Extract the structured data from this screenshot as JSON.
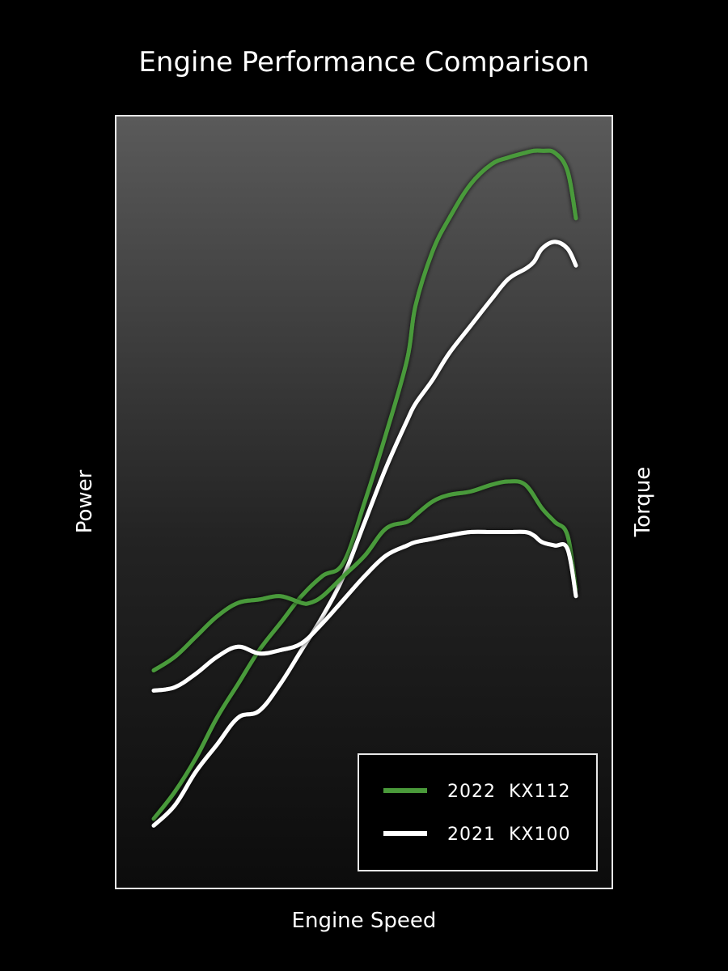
{
  "chart_data": {
    "type": "line",
    "title": "Engine Performance Comparison",
    "xlabel": "Engine Speed",
    "ylabel_left": "Power",
    "ylabel_right": "Torque",
    "axis_ticks_shown": false,
    "grid": false,
    "legend_position": "bottom-right",
    "xlim": [
      0,
      100
    ],
    "ylim": [
      0,
      100
    ],
    "series": [
      {
        "name": "2022 KX112",
        "metric": "Power",
        "color": "#4a9a3a",
        "x": [
          0,
          5,
          10,
          15,
          20,
          25,
          30,
          35,
          40,
          45,
          50,
          55,
          60,
          62,
          66,
          70,
          75,
          80,
          84,
          88,
          90,
          92,
          95,
          98,
          100
        ],
        "y": [
          6,
          10,
          15,
          21,
          26,
          31,
          35,
          39,
          42,
          44,
          53,
          63,
          74,
          82,
          90,
          95,
          100,
          103,
          104,
          104.7,
          105,
          105,
          104.7,
          102,
          95
        ]
      },
      {
        "name": "2021 KX100",
        "metric": "Power",
        "color": "#ffffff",
        "x": [
          0,
          5,
          10,
          15,
          20,
          25,
          30,
          35,
          40,
          45,
          50,
          55,
          60,
          62,
          66,
          70,
          75,
          80,
          84,
          88,
          90,
          92,
          95,
          98,
          100
        ],
        "y": [
          5,
          8,
          13,
          17,
          21,
          22,
          26,
          31,
          36,
          42,
          50,
          58,
          65,
          67.5,
          71,
          75,
          79,
          83,
          86,
          87.5,
          88.5,
          90.5,
          91.5,
          90.5,
          88
        ]
      },
      {
        "name": "2022 KX112",
        "metric": "Torque",
        "color": "#4a9a3a",
        "x": [
          0,
          5,
          10,
          15,
          20,
          25,
          30,
          35,
          37,
          40,
          45,
          50,
          55,
          60,
          62,
          66,
          70,
          75,
          80,
          84,
          88,
          92,
          95,
          98,
          100
        ],
        "y": [
          28,
          30,
          33,
          36,
          38,
          38.5,
          39,
          38,
          38,
          39,
          42,
          45,
          49,
          50,
          51,
          53,
          54,
          54.5,
          55.5,
          56,
          55.5,
          52,
          50,
          48,
          40
        ]
      },
      {
        "name": "2021 KX100",
        "metric": "Torque",
        "color": "#ffffff",
        "x": [
          0,
          5,
          10,
          15,
          20,
          25,
          30,
          35,
          40,
          45,
          50,
          55,
          60,
          62,
          66,
          70,
          75,
          80,
          84,
          88,
          90,
          92,
          95,
          98,
          100
        ],
        "y": [
          25,
          25.5,
          27.5,
          30,
          31.5,
          30.5,
          31,
          32,
          35,
          38.5,
          42,
          45,
          46.5,
          47,
          47.5,
          48,
          48.5,
          48.5,
          48.5,
          48.5,
          48,
          47,
          46.5,
          46,
          39
        ]
      }
    ],
    "legend": [
      {
        "label": "2022  KX112",
        "color": "#4a9a3a"
      },
      {
        "label": "2021  KX100",
        "color": "#ffffff"
      }
    ]
  }
}
